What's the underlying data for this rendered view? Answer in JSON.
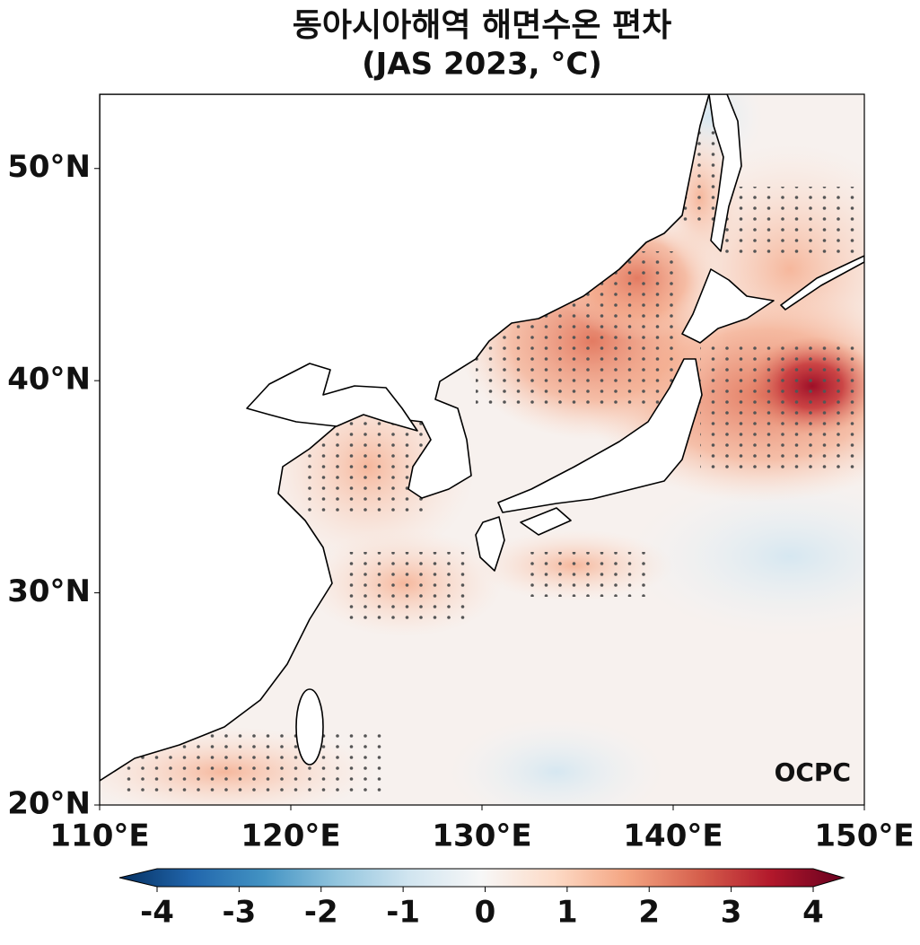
{
  "title": "동아시아해역 해면수온 편차",
  "subtitle": "(JAS 2023, °C)",
  "map": {
    "xlim": [
      110,
      150
    ],
    "ylim": [
      20,
      53.5
    ],
    "xticks": [
      {
        "value": 110,
        "label": "110°E"
      },
      {
        "value": 120,
        "label": "120°E"
      },
      {
        "value": 130,
        "label": "130°E"
      },
      {
        "value": 140,
        "label": "140°E"
      },
      {
        "value": 150,
        "label": "150°E"
      }
    ],
    "yticks": [
      {
        "value": 20,
        "label": "20°N"
      },
      {
        "value": 30,
        "label": "30°N"
      },
      {
        "value": 40,
        "label": "40°N"
      },
      {
        "value": 50,
        "label": "50°N"
      }
    ],
    "logo": "OCPC"
  },
  "colorbar": {
    "lim": [
      -4,
      4
    ],
    "ticks": [
      -4,
      -3,
      -2,
      -1,
      0,
      1,
      2,
      3,
      4
    ]
  }
}
